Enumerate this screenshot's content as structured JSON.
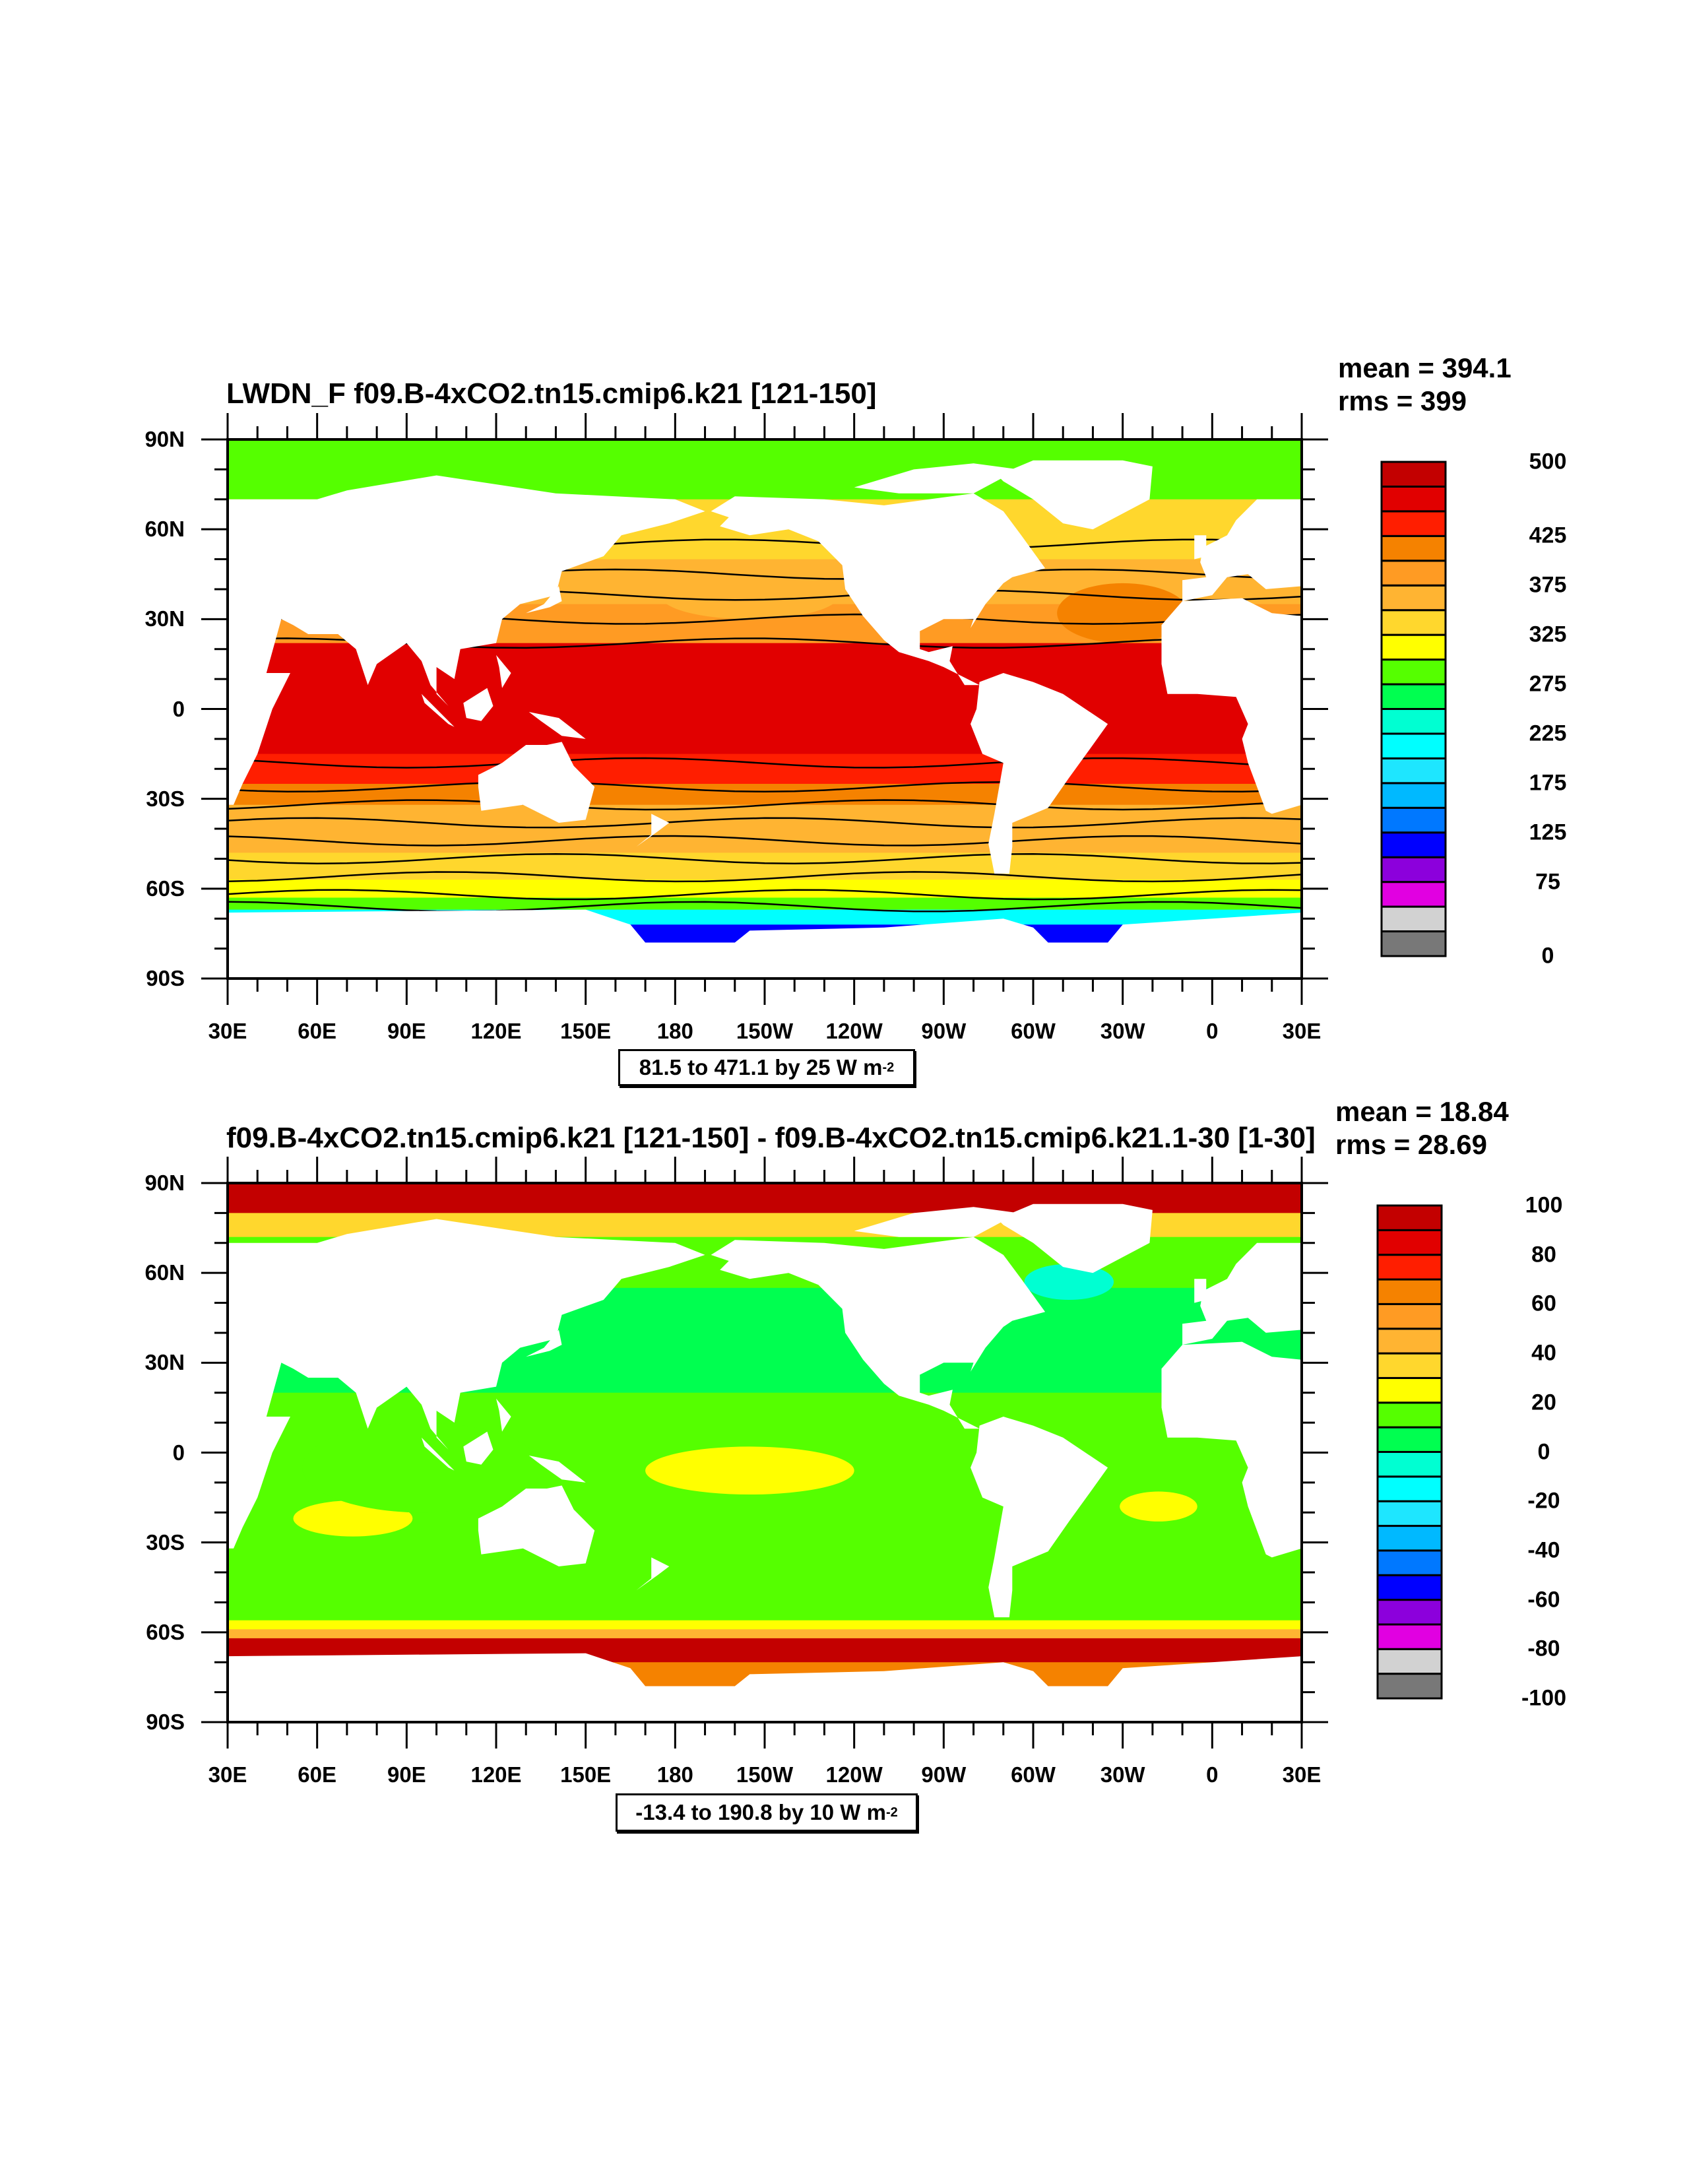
{
  "chart_data": [
    {
      "type": "heatmap",
      "title": "LWDN_F f09.B-4xCO2.tn15.cmip6.k21 [121-150]",
      "mean_label": "mean = 394.1",
      "rms_label": "rms = 399",
      "info": {
        "text": "81.5 to 471.1 by 25  W m",
        "exp": "-2"
      },
      "lon_ticks": [
        "30E",
        "60E",
        "90E",
        "120E",
        "150E",
        "180",
        "150W",
        "120W",
        "90W",
        "60W",
        "30W",
        "0",
        "30E"
      ],
      "lat_ticks": [
        "90N",
        "60N",
        "30N",
        "0",
        "30S",
        "60S",
        "90S"
      ],
      "colorbar": {
        "min": 0,
        "max": 500,
        "step": 25,
        "labels": [
          {
            "v": 500,
            "t": "500"
          },
          {
            "v": 425,
            "t": "425"
          },
          {
            "v": 375,
            "t": "375"
          },
          {
            "v": 325,
            "t": "325"
          },
          {
            "v": 275,
            "t": "275"
          },
          {
            "v": 225,
            "t": "225"
          },
          {
            "v": 175,
            "t": "175"
          },
          {
            "v": 125,
            "t": "125"
          },
          {
            "v": 75,
            "t": "75"
          },
          {
            "v": 0,
            "t": "0"
          }
        ]
      },
      "zonal_bands": [
        {
          "lat": [
            90,
            80
          ],
          "value": 285
        },
        {
          "lat": [
            80,
            70
          ],
          "value": 290
        },
        {
          "lat": [
            70,
            50
          ],
          "value": 335
        },
        {
          "lat": [
            50,
            35
          ],
          "value": 360
        },
        {
          "lat": [
            35,
            22
          ],
          "value": 390
        },
        {
          "lat": [
            22,
            -15
          ],
          "value": 460
        },
        {
          "lat": [
            -15,
            -25
          ],
          "value": 430
        },
        {
          "lat": [
            -25,
            -32
          ],
          "value": 405
        },
        {
          "lat": [
            -32,
            -48
          ],
          "value": 360
        },
        {
          "lat": [
            -48,
            -57
          ],
          "value": 335
        },
        {
          "lat": [
            -57,
            -63
          ],
          "value": 315
        },
        {
          "lat": [
            -63,
            -67
          ],
          "value": 290
        },
        {
          "lat": [
            -67,
            -72
          ],
          "value": 200
        },
        {
          "lat": [
            -72,
            -78
          ],
          "value": 110
        }
      ],
      "features": [
        {
          "lon": 330,
          "lat": 32,
          "rlon": 22,
          "rlat": 10,
          "value": 410
        },
        {
          "lon": 205,
          "lat": 38,
          "rlon": 30,
          "rlat": 8,
          "value": 365
        }
      ],
      "contours_lat": [
        55,
        45,
        38,
        30,
        22,
        -18,
        -26,
        -32,
        -38,
        -44,
        -50,
        -56,
        -62,
        -66
      ]
    },
    {
      "type": "heatmap",
      "title": "f09.B-4xCO2.tn15.cmip6.k21 [121-150] - f09.B-4xCO2.tn15.cmip6.k21.1-30 [1-30]",
      "mean_label": "mean = 18.84",
      "rms_label": "rms = 28.69",
      "info": {
        "text": "-13.4 to 190.8 by 10  W m",
        "exp": "-2"
      },
      "lon_ticks": [
        "30E",
        "60E",
        "90E",
        "120E",
        "150E",
        "180",
        "150W",
        "120W",
        "90W",
        "60W",
        "30W",
        "0",
        "30E"
      ],
      "lat_ticks": [
        "90N",
        "60N",
        "30N",
        "0",
        "30S",
        "60S",
        "90S"
      ],
      "colorbar": {
        "min": -100,
        "max": 100,
        "step": 10,
        "labels": [
          {
            "v": 100,
            "t": "100"
          },
          {
            "v": 80,
            "t": "80"
          },
          {
            "v": 60,
            "t": "60"
          },
          {
            "v": 40,
            "t": "40"
          },
          {
            "v": 20,
            "t": "20"
          },
          {
            "v": 0,
            "t": "0"
          },
          {
            "v": -20,
            "t": "-20"
          },
          {
            "v": -40,
            "t": "-40"
          },
          {
            "v": -60,
            "t": "-60"
          },
          {
            "v": -80,
            "t": "-80"
          },
          {
            "v": -100,
            "t": "-100"
          }
        ]
      },
      "zonal_bands": [
        {
          "lat": [
            90,
            80
          ],
          "value": 95
        },
        {
          "lat": [
            80,
            72
          ],
          "value": 35
        },
        {
          "lat": [
            72,
            55
          ],
          "value": 15
        },
        {
          "lat": [
            55,
            20
          ],
          "value": 5
        },
        {
          "lat": [
            20,
            -56
          ],
          "value": 15
        },
        {
          "lat": [
            -56,
            -59
          ],
          "value": 25
        },
        {
          "lat": [
            -59,
            -62
          ],
          "value": 45
        },
        {
          "lat": [
            -62,
            -70
          ],
          "value": 95
        },
        {
          "lat": [
            -70,
            -78
          ],
          "value": 65
        }
      ],
      "features": [
        {
          "lon": 205,
          "lat": -6,
          "rlon": 35,
          "rlat": 8,
          "value": 25
        },
        {
          "lon": 72,
          "lat": -22,
          "rlon": 20,
          "rlat": 6,
          "value": 25
        },
        {
          "lon": 342,
          "lat": -18,
          "rlon": 13,
          "rlat": 5,
          "value": 25
        },
        {
          "lon": 312,
          "lat": 57,
          "rlon": 15,
          "rlat": 6,
          "value": -5
        },
        {
          "lon": 95,
          "lat": -5,
          "rlon": 40,
          "rlat": 15,
          "value": 15
        }
      ],
      "contours_lat": []
    }
  ],
  "colors": [
    "#787878",
    "#d2d2d2",
    "#e100e1",
    "#8c00dc",
    "#0000ff",
    "#0078ff",
    "#00b9ff",
    "#1ee6ff",
    "#00ffff",
    "#00ffd2",
    "#00ff50",
    "#55ff00",
    "#ffff00",
    "#ffd72d",
    "#ffb432",
    "#ff9b23",
    "#f58200",
    "#ff1e00",
    "#e10000",
    "#c30000"
  ]
}
